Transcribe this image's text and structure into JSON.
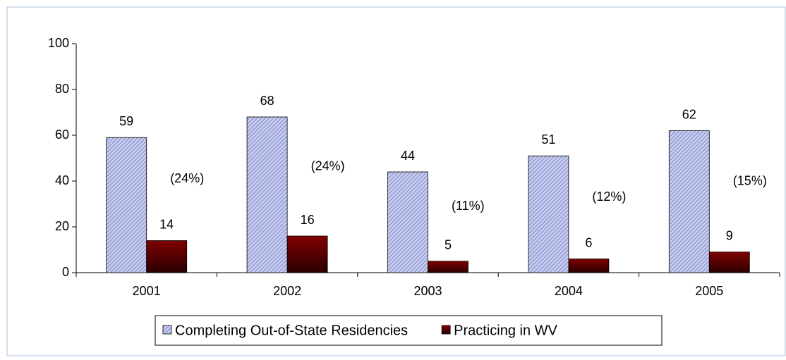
{
  "chart_data": {
    "type": "bar",
    "categories": [
      "2001",
      "2002",
      "2003",
      "2004",
      "2005"
    ],
    "series": [
      {
        "name": "Completing Out-of-State Residencies",
        "color": "#c8ccf0",
        "values": [
          59,
          68,
          44,
          51,
          62
        ]
      },
      {
        "name": "Practicing in WV",
        "color": "#800000",
        "values": [
          14,
          16,
          5,
          6,
          9
        ]
      }
    ],
    "annotations": [
      "(24%)",
      "(24%)",
      "(11%)",
      "(12%)",
      "(15%)"
    ],
    "ylim": [
      0,
      100
    ],
    "yticks": [
      0,
      20,
      40,
      60,
      80,
      100
    ],
    "legend": "bottom"
  }
}
